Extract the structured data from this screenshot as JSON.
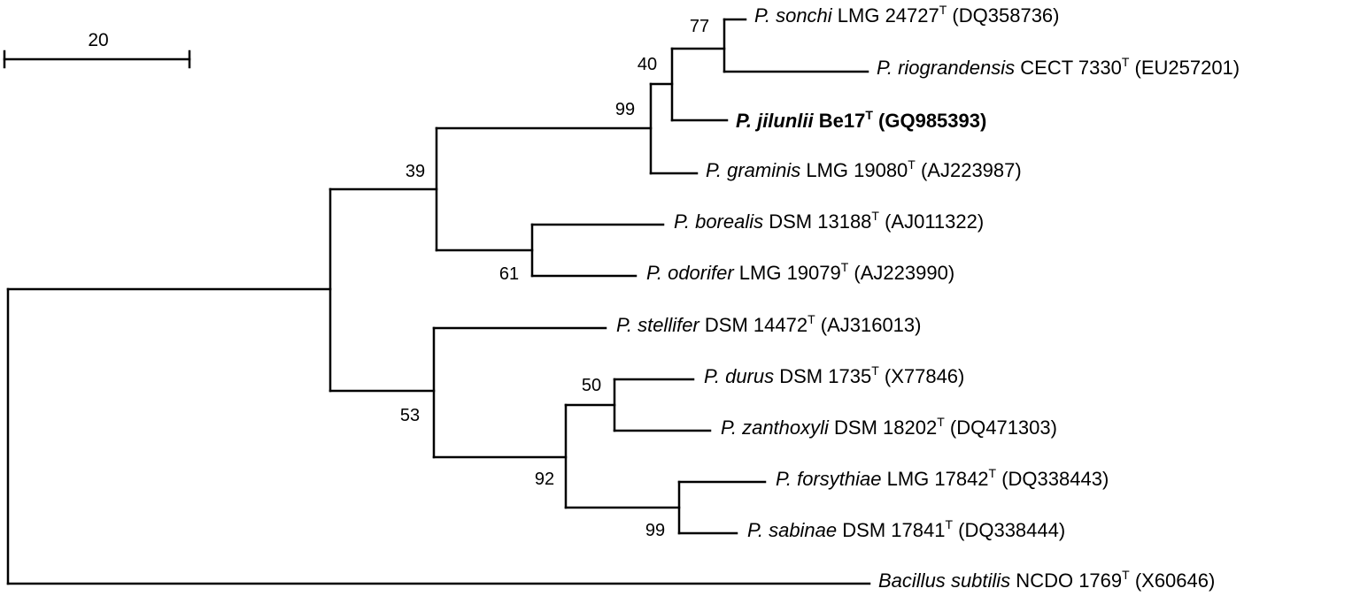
{
  "scale_bar": {
    "label": "20"
  },
  "bootstrap_values": {
    "n_sonchi_rio": "77",
    "n_sonchi_rio_jilunlii": "40",
    "n_jilunlii_group": "99",
    "n_upper_clade": "39",
    "n_borealis_odorifer": "61",
    "n_lower_clade": "53",
    "n_durus_zanthoxyli": "50",
    "n_four": "92",
    "n_forsythiae_sabinae": "99"
  },
  "taxa": [
    {
      "id": "sonchi",
      "genus": "P.",
      "species": "sonchi",
      "strain": " LMG 24727",
      "type_mark": "T",
      "accession": " (DQ358736)",
      "bold": false
    },
    {
      "id": "riograndensis",
      "genus": "P.",
      "species": "riograndensis",
      "strain": " CECT 7330",
      "type_mark": "T",
      "accession": " (EU257201)",
      "bold": false
    },
    {
      "id": "jilunlii",
      "genus": "P.",
      "species": "jilunlii",
      "strain": " Be17",
      "type_mark": "T",
      "accession": " (GQ985393)",
      "bold": true
    },
    {
      "id": "graminis",
      "genus": "P.",
      "species": "graminis",
      "strain": " LMG 19080",
      "type_mark": "T",
      "accession": " (AJ223987)",
      "bold": false
    },
    {
      "id": "borealis",
      "genus": "P.",
      "species": "borealis",
      "strain": " DSM 13188",
      "type_mark": "T",
      "accession": " (AJ011322)",
      "bold": false
    },
    {
      "id": "odorifer",
      "genus": "P.",
      "species": "odorifer",
      "strain": " LMG 19079",
      "type_mark": "T",
      "accession": " (AJ223990)",
      "bold": false
    },
    {
      "id": "stellifer",
      "genus": "P.",
      "species": "stellifer",
      "strain": " DSM 14472",
      "type_mark": "T",
      "accession": " (AJ316013)",
      "bold": false
    },
    {
      "id": "durus",
      "genus": "P.",
      "species": "durus",
      "strain": " DSM 1735",
      "type_mark": "T",
      "accession": " (X77846)",
      "bold": false
    },
    {
      "id": "zanthoxyli",
      "genus": "P.",
      "species": "zanthoxyli",
      "strain": " DSM 18202",
      "type_mark": "T",
      "accession": " (DQ471303)",
      "bold": false
    },
    {
      "id": "forsythiae",
      "genus": "P.",
      "species": "forsythiae",
      "strain": " LMG 17842",
      "type_mark": "T",
      "accession": " (DQ338443)",
      "bold": false
    },
    {
      "id": "sabinae",
      "genus": "P.",
      "species": "sabinae",
      "strain": " DSM 17841",
      "type_mark": "T",
      "accession": " (DQ338444)",
      "bold": false
    },
    {
      "id": "bacillus",
      "genus": "Bacillus",
      "species": "subtilis",
      "strain": " NCDO 1769",
      "type_mark": "T",
      "accession": " (X60646)",
      "bold": false
    }
  ]
}
